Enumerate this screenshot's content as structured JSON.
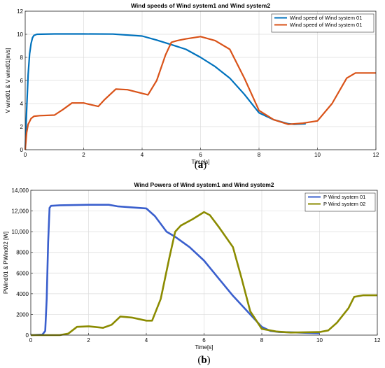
{
  "chart_data": [
    {
      "type": "line",
      "title": "Wind speeds of Wind system1 and Wind system2",
      "xlabel": "Time[s]",
      "ylabel": "V wind01 & V wind01[m/s]",
      "xlim": [
        0,
        12
      ],
      "ylim": [
        0,
        12
      ],
      "xticks": [
        "0",
        "2",
        "4",
        "6",
        "8",
        "10",
        "12"
      ],
      "yticks": [
        "0",
        "2",
        "4",
        "6",
        "8",
        "10",
        "12"
      ],
      "grid": true,
      "legend_position": "top-right",
      "caption": "(a)",
      "series": [
        {
          "name": "Wind speed of Wind system 01",
          "color": "#0072BD",
          "points": [
            [
              0,
              0
            ],
            [
              0.05,
              3.5
            ],
            [
              0.1,
              6.5
            ],
            [
              0.15,
              8.3
            ],
            [
              0.2,
              9.2
            ],
            [
              0.25,
              9.7
            ],
            [
              0.3,
              9.9
            ],
            [
              0.4,
              10.0
            ],
            [
              1,
              10.03
            ],
            [
              2,
              10.03
            ],
            [
              3,
              10.02
            ],
            [
              4,
              9.85
            ],
            [
              4.5,
              9.5
            ],
            [
              5,
              9.1
            ],
            [
              5.5,
              8.7
            ],
            [
              6,
              8.0
            ],
            [
              6.5,
              7.2
            ],
            [
              7,
              6.2
            ],
            [
              7.5,
              4.8
            ],
            [
              8,
              3.2
            ],
            [
              8.5,
              2.6
            ],
            [
              9,
              2.25
            ],
            [
              9.2,
              2.2
            ],
            [
              9.6,
              2.25
            ]
          ]
        },
        {
          "name": "Wind speed of Wind system 01",
          "color": "#D95319",
          "points": [
            [
              0,
              0
            ],
            [
              0.05,
              1.5
            ],
            [
              0.1,
              2.2
            ],
            [
              0.2,
              2.7
            ],
            [
              0.3,
              2.9
            ],
            [
              0.5,
              2.95
            ],
            [
              1,
              3.0
            ],
            [
              1.3,
              3.5
            ],
            [
              1.6,
              4.05
            ],
            [
              2,
              4.05
            ],
            [
              2.5,
              3.75
            ],
            [
              2.7,
              4.3
            ],
            [
              3.1,
              5.25
            ],
            [
              3.5,
              5.2
            ],
            [
              4.2,
              4.75
            ],
            [
              4.5,
              6.0
            ],
            [
              4.8,
              8.2
            ],
            [
              5.0,
              9.3
            ],
            [
              5.2,
              9.45
            ],
            [
              5.5,
              9.6
            ],
            [
              6,
              9.8
            ],
            [
              6.5,
              9.45
            ],
            [
              7,
              8.7
            ],
            [
              7.5,
              6.2
            ],
            [
              8,
              3.4
            ],
            [
              8.5,
              2.6
            ],
            [
              9.0,
              2.2
            ],
            [
              9.5,
              2.3
            ],
            [
              10,
              2.5
            ],
            [
              10.5,
              4.0
            ],
            [
              11,
              6.2
            ],
            [
              11.3,
              6.65
            ],
            [
              11.6,
              6.65
            ],
            [
              12,
              6.65
            ]
          ]
        }
      ]
    },
    {
      "type": "line",
      "title": "Wind Powers of Wind system1 and Wind system2",
      "xlabel": "Time[s]",
      "ylabel": "PWind01 & PWind02 [W]",
      "xlim": [
        0,
        12
      ],
      "ylim": [
        0,
        14000
      ],
      "xticks": [
        "0",
        "2",
        "4",
        "6",
        "8",
        "10",
        "12"
      ],
      "yticks": [
        "0",
        "2000",
        "4000",
        "6000",
        "8000",
        "10,000",
        "12,000",
        "14,000"
      ],
      "grid": true,
      "legend_position": "top-right",
      "caption": "(b)",
      "series": [
        {
          "name": "P Wind system 01",
          "color": "#3A5FCD",
          "points": [
            [
              0,
              0
            ],
            [
              0.4,
              50
            ],
            [
              0.5,
              400
            ],
            [
              0.55,
              3500
            ],
            [
              0.6,
              9000
            ],
            [
              0.65,
              12300
            ],
            [
              0.7,
              12500
            ],
            [
              1,
              12550
            ],
            [
              2,
              12600
            ],
            [
              2.7,
              12600
            ],
            [
              3,
              12450
            ],
            [
              3.5,
              12350
            ],
            [
              4,
              12250
            ],
            [
              4.3,
              11500
            ],
            [
              4.7,
              10000
            ],
            [
              5.0,
              9500
            ],
            [
              5.5,
              8500
            ],
            [
              6,
              7200
            ],
            [
              6.5,
              5500
            ],
            [
              7,
              3800
            ],
            [
              7.5,
              2300
            ],
            [
              8,
              800
            ],
            [
              8.3,
              400
            ],
            [
              8.6,
              300
            ],
            [
              9.0,
              280
            ],
            [
              9.5,
              220
            ],
            [
              10,
              180
            ]
          ]
        },
        {
          "name": "P Wind system 02",
          "color": "#8B8B00",
          "points": [
            [
              0,
              0
            ],
            [
              1,
              0
            ],
            [
              1.3,
              150
            ],
            [
              1.6,
              800
            ],
            [
              2,
              850
            ],
            [
              2.5,
              700
            ],
            [
              2.8,
              1000
            ],
            [
              3.1,
              1800
            ],
            [
              3.5,
              1700
            ],
            [
              4,
              1400
            ],
            [
              4.2,
              1400
            ],
            [
              4.5,
              3500
            ],
            [
              4.8,
              7500
            ],
            [
              5.0,
              10000
            ],
            [
              5.2,
              10600
            ],
            [
              5.6,
              11200
            ],
            [
              6,
              11900
            ],
            [
              6.2,
              11600
            ],
            [
              6.5,
              10500
            ],
            [
              7,
              8500
            ],
            [
              7.3,
              5500
            ],
            [
              7.6,
              2300
            ],
            [
              8,
              600
            ],
            [
              8.5,
              350
            ],
            [
              9,
              250
            ],
            [
              9.5,
              280
            ],
            [
              10,
              300
            ],
            [
              10.3,
              450
            ],
            [
              10.6,
              1200
            ],
            [
              11,
              2600
            ],
            [
              11.2,
              3700
            ],
            [
              11.5,
              3850
            ],
            [
              12,
              3850
            ]
          ]
        }
      ]
    }
  ]
}
